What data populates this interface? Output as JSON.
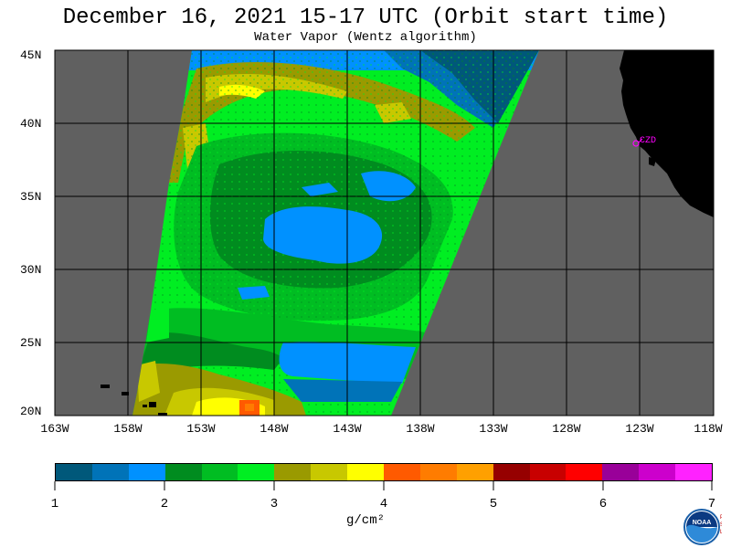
{
  "title": "December 16, 2021  15-17 UTC  (Orbit start time)",
  "subtitle": "Water Vapor (Wentz algorithm)",
  "map": {
    "lat_labels": [
      "45N",
      "40N",
      "35N",
      "30N",
      "25N",
      "20N"
    ],
    "lon_labels": [
      "163W",
      "158W",
      "153W",
      "148W",
      "143W",
      "138W",
      "133W",
      "128W",
      "123W",
      "118W"
    ],
    "station_label": "CZD"
  },
  "colorbar": {
    "tick_labels": [
      "1",
      "2",
      "3",
      "4",
      "5",
      "6",
      "7"
    ],
    "unit": "g/cm²",
    "colors": [
      "#00587a",
      "#0073b8",
      "#0091ff",
      "#008c1f",
      "#00bd22",
      "#00ee22",
      "#9a9a00",
      "#c8c800",
      "#ffff00",
      "#ff5a00",
      "#ff7c00",
      "#ffa000",
      "#960000",
      "#c80000",
      "#ff0000",
      "#990099",
      "#cc00cc",
      "#ff22ff"
    ]
  },
  "colors": {
    "land": "#000000",
    "no_data": "#606060",
    "station": "#ff00ff"
  },
  "logo": {
    "name": "NOAA",
    "side_letters": "PSL"
  }
}
